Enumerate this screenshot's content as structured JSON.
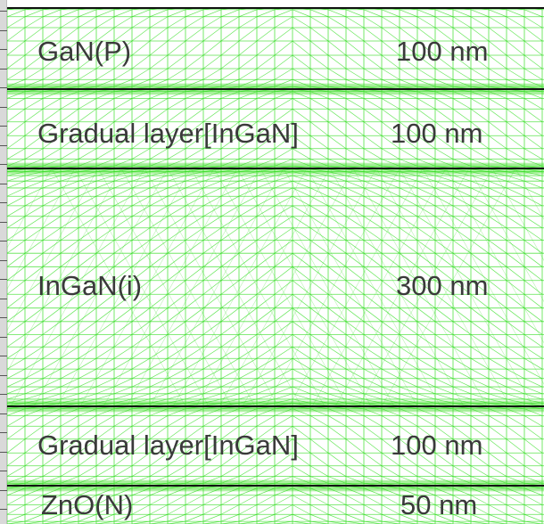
{
  "diagram": {
    "mesh_color": "#33dd22",
    "dense_band_color": "#44dd22",
    "boundary_color": "#111111",
    "layers": [
      {
        "name": "GaN(P)",
        "thickness": "100 nm"
      },
      {
        "name": "Gradual layer[InGaN]",
        "thickness": "100 nm"
      },
      {
        "name": "InGaN(i)",
        "thickness": "300 nm"
      },
      {
        "name": "Gradual layer[InGaN]",
        "thickness": "100 nm"
      },
      {
        "name": "ZnO(N)",
        "thickness": "50 nm"
      }
    ]
  }
}
